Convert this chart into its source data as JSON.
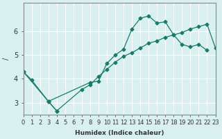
{
  "xlabel": "Humidex (Indice chaleur)",
  "ylabel": "/",
  "bg_color": "#d8f0f0",
  "grid_color": "#ffffff",
  "line_color": "#1a7a6a",
  "xlim": [
    0,
    23
  ],
  "ylim": [
    2.5,
    7.2
  ],
  "xticks": [
    0,
    1,
    2,
    3,
    4,
    5,
    6,
    7,
    8,
    9,
    10,
    11,
    12,
    13,
    14,
    15,
    16,
    17,
    18,
    19,
    20,
    21,
    22,
    23
  ],
  "yticks": [
    3,
    4,
    5,
    6
  ],
  "series": [
    {
      "x": [
        0,
        1,
        3,
        8,
        9,
        10,
        11,
        12,
        13,
        14,
        15,
        16,
        17,
        18,
        19,
        20,
        21,
        22
      ],
      "y": [
        4.3,
        3.95,
        3.05,
        3.85,
        3.9,
        4.65,
        5.0,
        5.25,
        6.1,
        6.55,
        6.65,
        6.35,
        6.4,
        5.85,
        5.45,
        5.35,
        5.45,
        5.2
      ]
    },
    {
      "x": [
        3,
        4
      ],
      "y": [
        3.05,
        2.65
      ]
    },
    {
      "x": [
        0,
        3,
        4,
        7,
        8,
        9,
        10,
        11,
        12,
        13,
        14,
        15,
        16,
        17,
        18,
        19,
        20,
        21,
        22,
        23
      ],
      "y": [
        4.3,
        3.05,
        2.65,
        3.55,
        3.75,
        4.1,
        4.4,
        4.7,
        4.95,
        5.1,
        5.3,
        5.5,
        5.6,
        5.75,
        5.85,
        5.95,
        6.1,
        6.2,
        6.3,
        5.3
      ]
    }
  ]
}
